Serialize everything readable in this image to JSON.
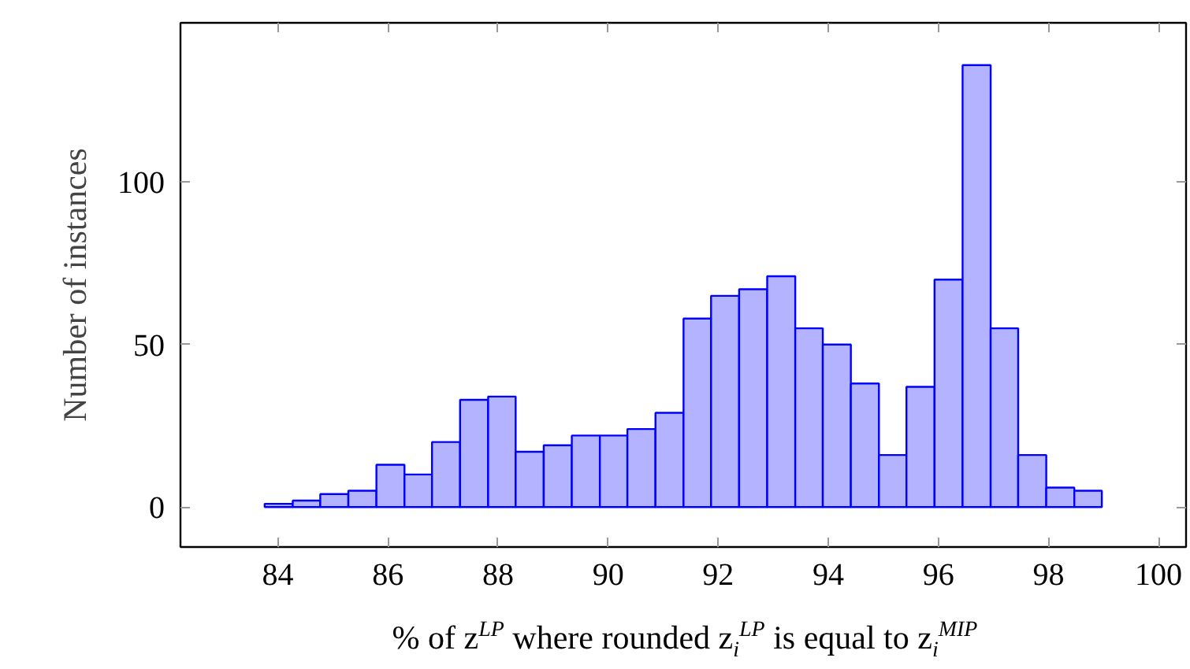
{
  "chart_data": {
    "type": "histogram",
    "xlabel": "% of z$^{LP}$ where rounded z$_{i}$$^{LP}$ is equal to z$_{i}$$^{MIP}$",
    "ylabel": "Number of instances",
    "bins": [
      83.76,
      84.27,
      84.77,
      85.28,
      85.79,
      86.3,
      86.8,
      87.31,
      87.82,
      88.32,
      88.83,
      89.34,
      89.85,
      90.35,
      90.86,
      91.37,
      91.87,
      92.38,
      92.89,
      93.4,
      93.9,
      94.41,
      94.92,
      95.42,
      95.93,
      96.44,
      96.95,
      97.45,
      97.96,
      98.47,
      98.97
    ],
    "values": [
      1,
      2,
      4,
      5,
      13,
      10,
      20,
      33,
      34,
      17,
      19,
      22,
      22,
      24,
      29,
      58,
      65,
      67,
      71,
      55,
      50,
      38,
      16,
      37,
      70,
      136,
      55,
      16,
      6,
      5
    ],
    "color": "#b3b3ff",
    "xlim": [
      82.23,
      100.5
    ],
    "ylim": [
      -12.3,
      149
    ],
    "xticks": [
      84,
      86,
      88,
      90,
      92,
      94,
      96,
      98,
      100
    ],
    "yticks": [
      0,
      50,
      100
    ],
    "grid": false
  }
}
